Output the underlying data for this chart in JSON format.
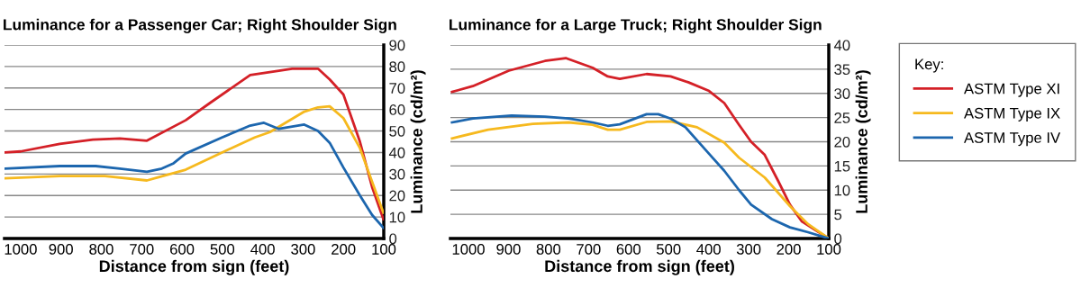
{
  "chart_data": [
    {
      "type": "line",
      "title": "Luminance for a Passenger Car; Right Shoulder Sign",
      "xlabel": "Distance from sign (feet)",
      "ylabel": "Luminance (cd/m²)",
      "xlim": [
        1040,
        100
      ],
      "xticks": [
        1000,
        900,
        800,
        700,
        600,
        500,
        400,
        300,
        200,
        100
      ],
      "ylim": [
        0,
        90
      ],
      "yticks": [
        0,
        10,
        20,
        30,
        40,
        50,
        60,
        70,
        80,
        90
      ],
      "grid": "y",
      "legend": false,
      "marker": "none",
      "line_style": "solid",
      "series": [
        {
          "color": "#d42027",
          "x": [
            1039,
            1000,
            903,
            821,
            754,
            687,
            591,
            531,
            431,
            360,
            327,
            263,
            234,
            200,
            159,
            129,
            101
          ],
          "values": [
            40,
            40.5,
            44,
            46,
            46.5,
            45.5,
            55,
            63,
            76,
            78,
            79,
            79,
            74,
            67,
            45,
            24,
            9
          ]
        },
        {
          "color": "#f6b91e",
          "x": [
            1039,
            903,
            791,
            687,
            658,
            591,
            501,
            420,
            382,
            297,
            263,
            234,
            200,
            159,
            101
          ],
          "values": [
            28,
            29,
            29,
            27,
            28.5,
            32,
            40,
            47,
            49.5,
            59,
            61,
            61.5,
            56,
            42,
            12
          ]
        },
        {
          "color": "#1c66ae",
          "x": [
            1039,
            903,
            814,
            754,
            687,
            650,
            621,
            591,
            501,
            431,
            397,
            360,
            297,
            263,
            234,
            200,
            159,
            129,
            101
          ],
          "values": [
            32.5,
            33.7,
            33.7,
            32.5,
            31,
            32.5,
            35,
            39.5,
            47,
            52.5,
            53.8,
            51,
            53,
            50,
            44.5,
            33,
            20,
            11,
            5
          ]
        }
      ]
    },
    {
      "type": "line",
      "title": "Luminance for a Large Truck; Right Shoulder Sign",
      "xlabel": "Distance from sign (feet)",
      "ylabel": "Luminance (cd/m²)",
      "xlim": [
        1045,
        100
      ],
      "xticks": [
        1000,
        900,
        800,
        700,
        600,
        500,
        400,
        300,
        200,
        100
      ],
      "ylim": [
        0,
        40
      ],
      "yticks": [
        0,
        5,
        10,
        15,
        20,
        25,
        30,
        35,
        40
      ],
      "grid": "y",
      "legend": "right",
      "legend_title": "Key:",
      "marker": "none",
      "line_style": "solid",
      "series": [
        {
          "name": "ASTM Type XI",
          "color": "#d42027",
          "x": [
            1041,
            989,
            899,
            809,
            757,
            690,
            652,
            622,
            555,
            495,
            451,
            399,
            361,
            324,
            294,
            260,
            227,
            197,
            167,
            100
          ],
          "values": [
            30.3,
            31.5,
            34.7,
            36.7,
            37.3,
            35.3,
            33.5,
            33,
            34,
            33.5,
            32.3,
            30.5,
            28,
            23.5,
            20,
            17.3,
            12,
            7,
            3.5,
            0
          ]
        },
        {
          "name": "ASTM Type IX",
          "color": "#f6b91e",
          "x": [
            1041,
            951,
            839,
            750,
            690,
            652,
            622,
            555,
            495,
            429,
            361,
            324,
            260,
            197,
            152,
            100
          ],
          "values": [
            20.7,
            22.5,
            23.7,
            24,
            23.5,
            22.5,
            22.5,
            24.1,
            24.2,
            23,
            19.8,
            16.7,
            12.6,
            6.7,
            3,
            0
          ]
        },
        {
          "name": "ASTM Type IV",
          "color": "#1c66ae",
          "x": [
            1041,
            989,
            892,
            809,
            750,
            690,
            652,
            622,
            555,
            526,
            495,
            458,
            399,
            361,
            324,
            294,
            242,
            197,
            152,
            100
          ],
          "values": [
            24,
            24.8,
            25.4,
            25.2,
            24.8,
            24,
            23.3,
            23.6,
            25.7,
            25.7,
            24.8,
            23,
            17.5,
            14,
            10,
            7,
            4,
            2.3,
            1.3,
            0
          ]
        }
      ]
    }
  ]
}
